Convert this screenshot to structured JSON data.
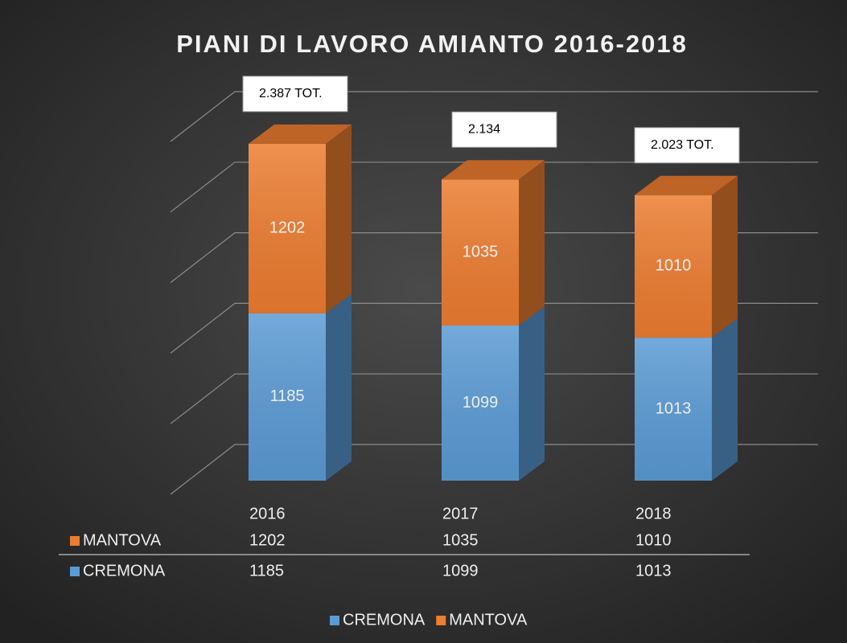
{
  "chart_data": {
    "type": "bar",
    "stacked": true,
    "three_d": true,
    "title": "PIANI DI LAVORO AMIANTO 2016-2018",
    "categories": [
      "2016",
      "2017",
      "2018"
    ],
    "series": [
      {
        "name": "CREMONA",
        "color": "#5b9bd5",
        "values": [
          1185,
          1099,
          1013
        ]
      },
      {
        "name": "MANTOVA",
        "color": "#ed7d31",
        "values": [
          1202,
          1035,
          1010
        ]
      }
    ],
    "annotations": [
      "2.387 TOT.",
      "2.134",
      "2.023 TOT."
    ],
    "ylim": [
      0,
      2500
    ],
    "yticks": [
      0,
      500,
      1000,
      1500,
      2000,
      2500
    ],
    "grid": true,
    "legend": "bottom",
    "data_table": true
  }
}
